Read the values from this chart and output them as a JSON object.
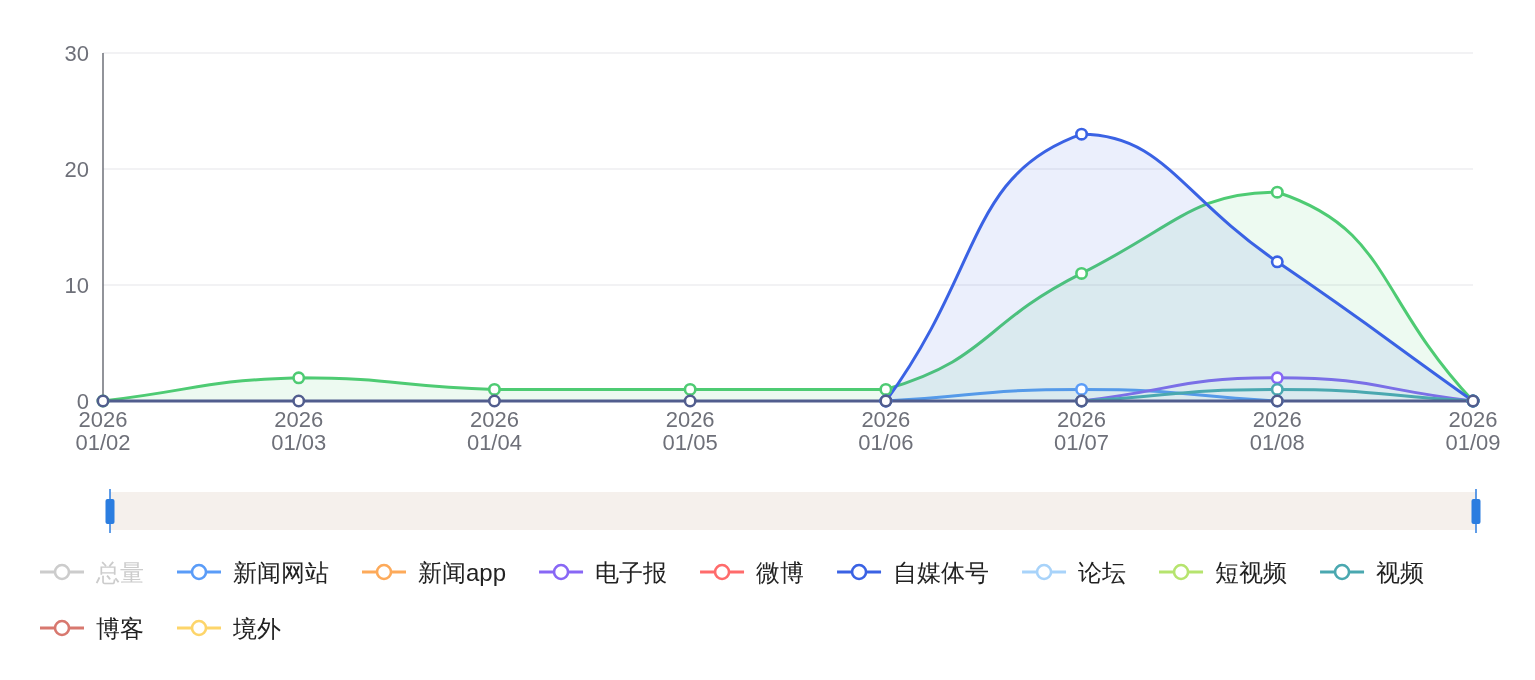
{
  "chart_data": {
    "type": "line",
    "categories": [
      "2026\n01/02",
      "2026\n01/03",
      "2026\n01/04",
      "2026\n01/05",
      "2026\n01/06",
      "2026\n01/07",
      "2026\n01/08",
      "2026\n01/09"
    ],
    "ylim": [
      0,
      30
    ],
    "yticks": [
      0,
      10,
      20,
      30
    ],
    "grid": "y",
    "legend": "bottom",
    "marker": "circle",
    "series": [
      {
        "name": "总量",
        "color": "#cccccc",
        "values": [
          null,
          null,
          null,
          null,
          null,
          null,
          null,
          null
        ]
      },
      {
        "name": "新闻网站",
        "color": "#5a9cf8",
        "values": [
          null,
          null,
          null,
          null,
          0,
          1,
          0,
          null
        ]
      },
      {
        "name": "新闻app",
        "color": "#fdaa5a",
        "values": [
          null,
          null,
          null,
          null,
          null,
          null,
          null,
          null
        ]
      },
      {
        "name": "电子报",
        "color": "#8867f5",
        "values": [
          null,
          null,
          null,
          null,
          null,
          0,
          2,
          0
        ]
      },
      {
        "name": "微博",
        "color": "#ff6b6b",
        "values": [
          null,
          null,
          null,
          null,
          null,
          null,
          null,
          null
        ]
      },
      {
        "type": "area",
        "color": "#4ecb73",
        "values": [
          0,
          2,
          1,
          1,
          1,
          11,
          18,
          0
        ]
      },
      {
        "name": "自媒体号",
        "type": "area",
        "color": "#3a62e4",
        "values": [
          null,
          null,
          null,
          null,
          0,
          23,
          12,
          0
        ]
      },
      {
        "name": "论坛",
        "color": "#a8d3fa",
        "values": [
          null,
          null,
          null,
          null,
          null,
          null,
          null,
          null
        ]
      },
      {
        "name": "短视频",
        "color": "#b6e46e",
        "values": [
          null,
          null,
          null,
          null,
          null,
          null,
          null,
          null
        ]
      },
      {
        "name": "视频",
        "color": "#4aa8b0",
        "values": [
          null,
          null,
          null,
          null,
          null,
          0,
          1,
          0
        ]
      },
      {
        "name": "博客",
        "color": "#d8786f",
        "values": [
          null,
          null,
          null,
          null,
          null,
          null,
          null,
          null
        ]
      },
      {
        "name": "境外",
        "color": "#fdd56a",
        "values": [
          null,
          null,
          null,
          null,
          null,
          null,
          null,
          null
        ]
      },
      {
        "color": "#515d8e",
        "values": [
          0,
          0,
          0,
          0,
          0,
          0,
          0,
          0
        ]
      }
    ]
  }
}
